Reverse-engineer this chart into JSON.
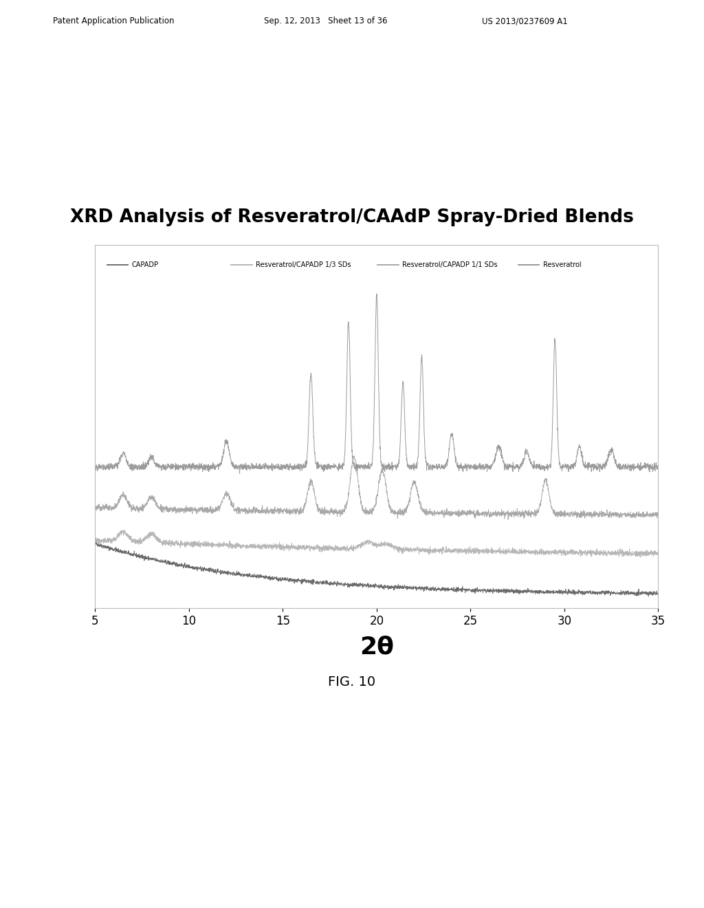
{
  "title": "XRD Analysis of Resveratrol/CAAdP Spray-Dried Blends",
  "title_fontsize": 19,
  "title_fontweight": "bold",
  "xlabel": "2θ",
  "xlabel_fontsize": 26,
  "xlabel_fontweight": "bold",
  "xmin": 5,
  "xmax": 35,
  "xticks": [
    5,
    10,
    15,
    20,
    25,
    30,
    35
  ],
  "xtick_fontsize": 12,
  "fig_caption": "FIG. 10",
  "fig_caption_fontsize": 14,
  "header1": "Patent Application Publication",
  "header2": "Sep. 12, 2013   Sheet 13 of 36",
  "header3": "US 2013/0237609 A1",
  "legend_labels": [
    "CAPADP",
    "Resveratrol/CAPADP 1/3 SDs",
    "Resveratrol/CAPADP 1/1 SDs",
    "Resveratrol"
  ],
  "color_resv": "#888888",
  "color_1to1": "#999999",
  "color_1to3": "#aaaaaa",
  "color_capadp": "#555555",
  "background_color": "#ffffff"
}
